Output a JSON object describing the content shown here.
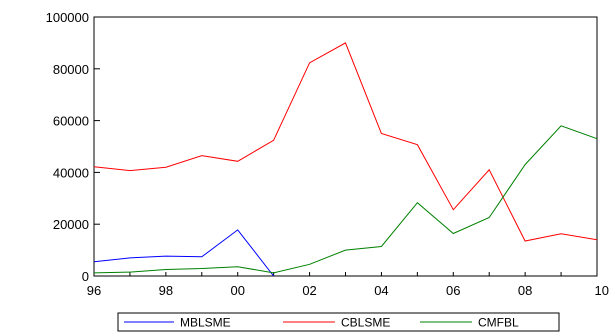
{
  "chart_data": {
    "type": "line",
    "title": "",
    "xlabel": "",
    "ylabel": "",
    "x": [
      1996,
      1997,
      1998,
      1999,
      2000,
      2001,
      2002,
      2003,
      2004,
      2005,
      2006,
      2007,
      2008,
      2009,
      2010
    ],
    "x_tick_values": [
      1996,
      1998,
      2000,
      2002,
      2004,
      2006,
      2008,
      2010
    ],
    "x_tick_labels": [
      "96",
      "98",
      "00",
      "02",
      "04",
      "06",
      "08",
      "10"
    ],
    "xlim": [
      1996,
      2010
    ],
    "y_tick_values": [
      0,
      20000,
      40000,
      60000,
      80000,
      100000
    ],
    "y_tick_labels": [
      "0",
      "20000",
      "40000",
      "60000",
      "80000",
      "100000"
    ],
    "ylim": [
      0,
      100000
    ],
    "grid": false,
    "legend_position": "bottom",
    "series": [
      {
        "name": "MBLSME",
        "color": "#0000ff",
        "x": [
          1996,
          1997,
          1998,
          1999,
          2000,
          2001
        ],
        "values": [
          5500,
          7000,
          7700,
          7400,
          17800,
          0
        ]
      },
      {
        "name": "CBLSME",
        "color": "#ff0000",
        "x": [
          1996,
          1997,
          1998,
          1999,
          2000,
          2001,
          2002,
          2003,
          2004,
          2005,
          2006,
          2007,
          2008,
          2009,
          2010
        ],
        "values": [
          42200,
          40700,
          42000,
          46500,
          44300,
          52400,
          82300,
          90000,
          55000,
          50700,
          25600,
          41000,
          13500,
          16300,
          14000
        ]
      },
      {
        "name": "CMFBL",
        "color": "#008000",
        "x": [
          1996,
          1997,
          1998,
          1999,
          2000,
          2001,
          2002,
          2003,
          2004,
          2005,
          2006,
          2007,
          2008,
          2009,
          2010
        ],
        "values": [
          1200,
          1500,
          2500,
          2900,
          3600,
          1200,
          4500,
          10000,
          11400,
          28300,
          16400,
          22600,
          43000,
          58000,
          53000
        ]
      }
    ]
  }
}
